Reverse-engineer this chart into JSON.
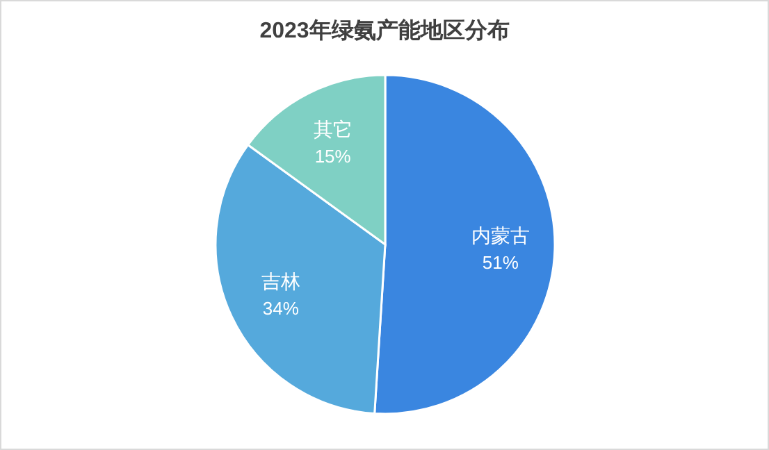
{
  "chart_data": {
    "type": "pie",
    "title": "2023年绿氨产能地区分布",
    "categories": [
      "内蒙古",
      "吉林",
      "其它"
    ],
    "values": [
      51,
      34,
      15
    ],
    "value_labels": [
      "51%",
      "34%",
      "15%"
    ],
    "colors": [
      "#3a86e0",
      "#55a9dc",
      "#7fd0c4"
    ]
  }
}
